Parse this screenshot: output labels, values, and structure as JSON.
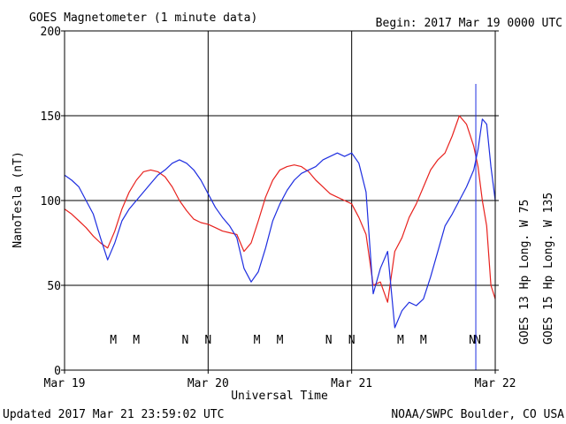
{
  "chart_data": {
    "type": "line",
    "title": "GOES Magnetometer (1 minute data)",
    "begin_label": "Begin:  2017 Mar 19 0000 UTC",
    "ylabel": "NanoTesla (nT)",
    "xlabel": "Universal Time",
    "ylim": [
      0,
      200
    ],
    "xlim": [
      0,
      3
    ],
    "y_ticks": [
      0,
      50,
      100,
      150,
      200
    ],
    "x_ticks": [
      {
        "x": 0,
        "label": "Mar 19"
      },
      {
        "x": 1,
        "label": "Mar 20"
      },
      {
        "x": 2,
        "label": "Mar 21"
      },
      {
        "x": 3,
        "label": "Mar 22"
      }
    ],
    "x_units": "days since 2017 Mar 19 0000 UTC",
    "grid": true,
    "colors": {
      "goes13": "#e8221e",
      "goes15": "#1e2ee0"
    },
    "series": [
      {
        "name": "GOES 13  Hp  Long. W 75",
        "color": "#e8221e",
        "x": [
          0.0,
          0.05,
          0.1,
          0.15,
          0.2,
          0.25,
          0.3,
          0.35,
          0.4,
          0.45,
          0.5,
          0.55,
          0.6,
          0.65,
          0.7,
          0.75,
          0.8,
          0.85,
          0.9,
          0.95,
          1.0,
          1.05,
          1.1,
          1.15,
          1.2,
          1.25,
          1.3,
          1.35,
          1.4,
          1.45,
          1.5,
          1.55,
          1.6,
          1.65,
          1.7,
          1.75,
          1.8,
          1.85,
          1.9,
          1.95,
          2.0,
          2.05,
          2.1,
          2.15,
          2.2,
          2.25,
          2.3,
          2.35,
          2.4,
          2.45,
          2.5,
          2.55,
          2.6,
          2.65,
          2.7,
          2.75,
          2.8,
          2.85,
          2.88,
          2.91,
          2.94,
          2.97,
          3.0
        ],
        "y": [
          95,
          92,
          88,
          84,
          79,
          75,
          72,
          82,
          95,
          105,
          112,
          117,
          118,
          117,
          114,
          108,
          100,
          94,
          89,
          87,
          86,
          84,
          82,
          81,
          80,
          70,
          75,
          88,
          102,
          112,
          118,
          120,
          121,
          120,
          117,
          112,
          108,
          104,
          102,
          100,
          98,
          90,
          80,
          50,
          52,
          40,
          70,
          78,
          90,
          98,
          108,
          118,
          124,
          128,
          138,
          150,
          145,
          132,
          120,
          100,
          85,
          50,
          42
        ]
      },
      {
        "name": "GOES 15  Hp  Long. W 135",
        "color": "#1e2ee0",
        "x": [
          0.0,
          0.05,
          0.1,
          0.15,
          0.2,
          0.25,
          0.3,
          0.35,
          0.4,
          0.45,
          0.5,
          0.55,
          0.6,
          0.65,
          0.7,
          0.75,
          0.8,
          0.85,
          0.9,
          0.95,
          1.0,
          1.05,
          1.1,
          1.15,
          1.2,
          1.25,
          1.3,
          1.35,
          1.4,
          1.45,
          1.5,
          1.55,
          1.6,
          1.65,
          1.7,
          1.75,
          1.8,
          1.85,
          1.9,
          1.95,
          2.0,
          2.05,
          2.1,
          2.15,
          2.2,
          2.25,
          2.3,
          2.35,
          2.4,
          2.45,
          2.5,
          2.55,
          2.6,
          2.65,
          2.7,
          2.75,
          2.8,
          2.85,
          2.88,
          2.91,
          2.94,
          2.97,
          3.0
        ],
        "y": [
          115,
          112,
          108,
          100,
          92,
          78,
          65,
          75,
          88,
          95,
          100,
          105,
          110,
          115,
          118,
          122,
          124,
          122,
          118,
          112,
          104,
          96,
          90,
          85,
          78,
          60,
          52,
          58,
          72,
          88,
          98,
          106,
          112,
          116,
          118,
          120,
          124,
          126,
          128,
          126,
          128,
          122,
          105,
          45,
          60,
          70,
          25,
          35,
          40,
          38,
          42,
          55,
          70,
          85,
          92,
          100,
          108,
          118,
          130,
          148,
          145,
          120,
          100
        ]
      }
    ],
    "event_markers": [
      {
        "x": 0.34,
        "label": "M",
        "series": "GOES 13"
      },
      {
        "x": 0.5,
        "label": "M",
        "series": "GOES 15"
      },
      {
        "x": 0.84,
        "label": "N",
        "series": "GOES 13"
      },
      {
        "x": 1.0,
        "label": "N",
        "series": "GOES 15"
      },
      {
        "x": 1.34,
        "label": "M",
        "series": "GOES 13"
      },
      {
        "x": 1.5,
        "label": "M",
        "series": "GOES 15"
      },
      {
        "x": 1.84,
        "label": "N",
        "series": "GOES 13"
      },
      {
        "x": 2.0,
        "label": "N",
        "series": "GOES 15"
      },
      {
        "x": 2.34,
        "label": "M",
        "series": "GOES 13"
      },
      {
        "x": 2.5,
        "label": "M",
        "series": "GOES 15"
      },
      {
        "x": 2.84,
        "label": "N",
        "series": "GOES 13"
      },
      {
        "x": 3.0,
        "label": "N",
        "series": "GOES 15"
      }
    ],
    "footer_left": "Updated 2017 Mar 21 23:59:02 UTC",
    "footer_right": "NOAA/SWPC Boulder, CO USA"
  }
}
